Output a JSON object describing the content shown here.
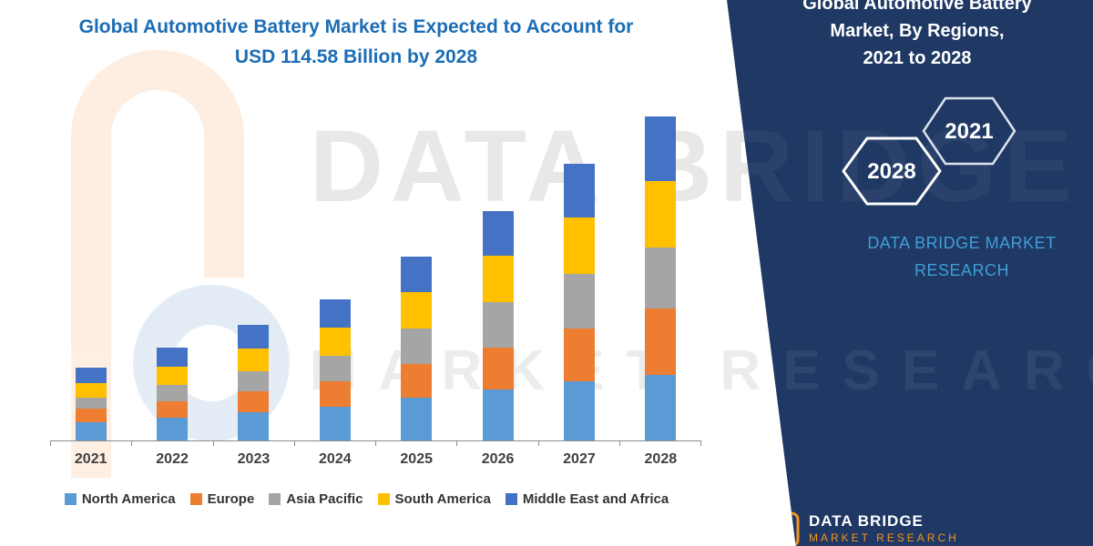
{
  "title_lines": [
    "Global Automotive Battery Market is Expected to Account for",
    "USD 114.58 Billion by 2028"
  ],
  "title_color": "#1b6db5",
  "watermark": {
    "line1": "DATA BRIDGE",
    "line2": "MARKET RESEARCH"
  },
  "chart_data": {
    "type": "bar",
    "stacked": true,
    "title": "Global Automotive Battery Market is Expected to Account for USD 114.58 Billion by 2028",
    "unit": "USD Billion",
    "categories": [
      "2021",
      "2022",
      "2023",
      "2024",
      "2025",
      "2026",
      "2027",
      "2028"
    ],
    "series": [
      {
        "name": "North America",
        "color": "#5B9BD5",
        "values": [
          6.5,
          8,
          10,
          12,
          15,
          18,
          21,
          23.2
        ]
      },
      {
        "name": "Europe",
        "color": "#ED7D31",
        "values": [
          4.8,
          6,
          7.5,
          9,
          12,
          15,
          18.5,
          23.4
        ]
      },
      {
        "name": "Asia Pacific",
        "color": "#A5A5A5",
        "values": [
          3.9,
          5.5,
          7,
          9,
          12.5,
          16,
          19.5,
          21.6
        ]
      },
      {
        "name": "South America",
        "color": "#FFC000",
        "values": [
          5.2,
          6.5,
          8,
          10,
          13,
          16.5,
          20,
          23.6
        ]
      },
      {
        "name": "Middle East and Africa",
        "color": "#4472C4",
        "values": [
          5.5,
          7,
          8.5,
          10,
          12.5,
          15.5,
          19,
          22.78
        ]
      }
    ],
    "ylim": [
      0,
      120
    ],
    "grid": false,
    "legend_position": "bottom",
    "xlabel": "",
    "ylabel": ""
  },
  "panel": {
    "background": "#1f3864",
    "heading_lines": [
      "Global Automotive Battery",
      "Market, By Regions,",
      "2021 to 2028"
    ],
    "hexagon_left": "2028",
    "hexagon_right": "2021",
    "brand_lines": [
      "DATA BRIDGE MARKET",
      "RESEARCH"
    ],
    "brand_color": "#3f9fd8",
    "footer_brand": "DATA BRIDGE",
    "footer_sub": "MARKET RESEARCH"
  }
}
